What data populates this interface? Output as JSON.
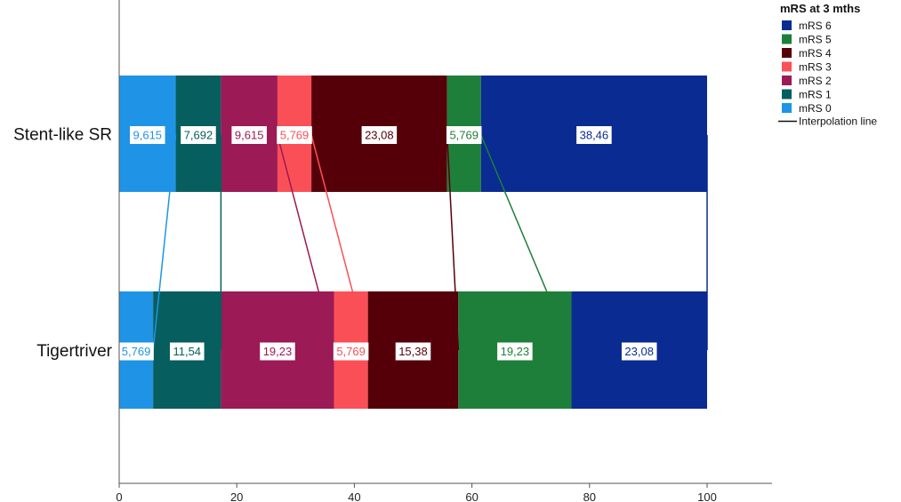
{
  "chart_data": {
    "type": "bar",
    "orientation": "horizontal",
    "stacked": true,
    "categories": [
      "Stent-like SR",
      "Tigertriver"
    ],
    "series": [
      {
        "name": "mRS 0",
        "color": "#1f94e6",
        "values": [
          9.615,
          5.769
        ],
        "labels": [
          "9,615",
          "5,769"
        ]
      },
      {
        "name": "mRS 1",
        "color": "#075e5e",
        "values": [
          7.692,
          11.54
        ],
        "labels": [
          "7,692",
          "11,54"
        ]
      },
      {
        "name": "mRS 2",
        "color": "#9c1a55",
        "values": [
          9.615,
          19.23
        ],
        "labels": [
          "9,615",
          "19,23"
        ]
      },
      {
        "name": "mRS 3",
        "color": "#fb4f57",
        "values": [
          5.769,
          5.769
        ],
        "labels": [
          "5,769",
          "5,769"
        ]
      },
      {
        "name": "mRS 4",
        "color": "#550009",
        "values": [
          23.08,
          15.38
        ],
        "labels": [
          "23,08",
          "15,38"
        ]
      },
      {
        "name": "mRS 5",
        "color": "#1e7f3a",
        "values": [
          5.769,
          19.23
        ],
        "labels": [
          "5,769",
          "19,23"
        ]
      },
      {
        "name": "mRS 6",
        "color": "#0a2b91",
        "values": [
          38.46,
          23.08
        ],
        "labels": [
          "38,46",
          "23,08"
        ]
      }
    ],
    "xlim": [
      0,
      111.5
    ],
    "xticks": [
      "0",
      "20",
      "40",
      "60",
      "80",
      "100"
    ],
    "legend": {
      "title": "mRS at 3 mths",
      "position": "top-right",
      "items": [
        "mRS 6",
        "mRS 5",
        "mRS 4",
        "mRS 3",
        "mRS 2",
        "mRS 1",
        "mRS 0"
      ],
      "interpolation_label": "Interpolation line"
    },
    "interpolation_lines": true,
    "grid": false
  }
}
